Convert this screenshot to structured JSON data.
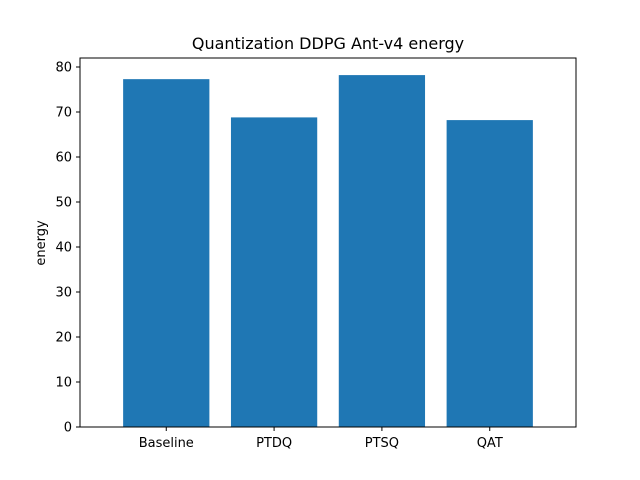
{
  "chart_data": {
    "type": "bar",
    "title": "Quantization DDPG Ant-v4 energy",
    "xlabel": "",
    "ylabel": "energy",
    "categories": [
      "Baseline",
      "PTDQ",
      "PTSQ",
      "QAT"
    ],
    "values": [
      77.3,
      68.8,
      78.2,
      68.2
    ],
    "ylim": [
      0,
      82
    ],
    "yticks": [
      0,
      10,
      20,
      30,
      40,
      50,
      60,
      70,
      80
    ],
    "bar_color": "#1f77b4",
    "grid": false,
    "legend": "none"
  }
}
